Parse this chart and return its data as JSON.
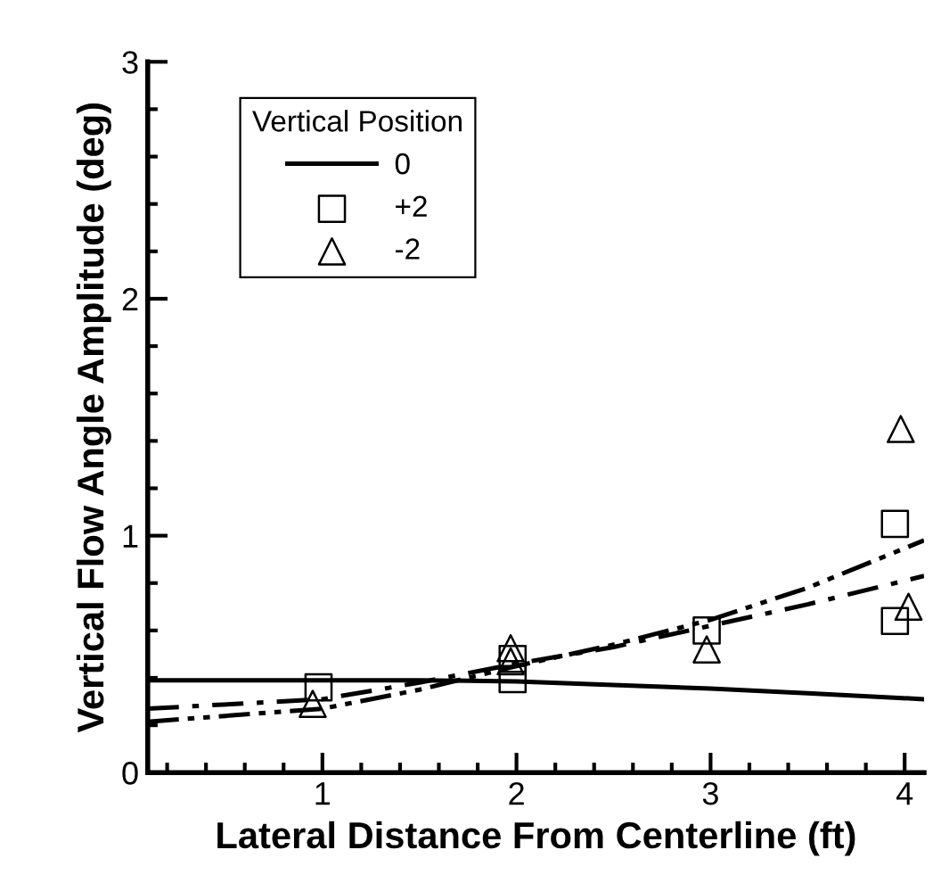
{
  "chart_data": {
    "type": "line",
    "xlabel": "Lateral Distance From Centerline (ft)",
    "ylabel": "Vertical Flow Angle Amplitude (deg)",
    "legend_title": "Vertical Position",
    "legend": "top left",
    "grid": false,
    "xlim": [
      0.1,
      4.1
    ],
    "ylim": [
      0,
      3
    ],
    "xticks": [
      {
        "value": 0.2,
        "label": null
      },
      {
        "value": 0.4,
        "label": null
      },
      {
        "value": 0.6,
        "label": null
      },
      {
        "value": 0.8,
        "label": null
      },
      1,
      {
        "value": 1.2,
        "label": null
      },
      {
        "value": 1.4,
        "label": null
      },
      {
        "value": 1.6,
        "label": null
      },
      {
        "value": 1.8,
        "label": null
      },
      2,
      {
        "value": 2.2,
        "label": null
      },
      {
        "value": 2.4,
        "label": null
      },
      {
        "value": 2.6,
        "label": null
      },
      {
        "value": 2.8,
        "label": null
      },
      3,
      {
        "value": 3.2,
        "label": null
      },
      {
        "value": 3.4,
        "label": null
      },
      {
        "value": 3.6,
        "label": null
      },
      {
        "value": 3.8,
        "label": null
      },
      4
    ],
    "yticks": [
      0,
      {
        "value": 0.2,
        "label": null
      },
      {
        "value": 0.4,
        "label": null
      },
      {
        "value": 0.6,
        "label": null
      },
      {
        "value": 0.8,
        "label": null
      },
      1,
      {
        "value": 1.2,
        "label": null
      },
      {
        "value": 1.4,
        "label": null
      },
      {
        "value": 1.6,
        "label": null
      },
      {
        "value": 1.8,
        "label": null
      },
      2,
      {
        "value": 2.2,
        "label": null
      },
      {
        "value": 2.4,
        "label": null
      },
      {
        "value": 2.6,
        "label": null
      },
      {
        "value": 2.8,
        "label": null
      },
      3
    ],
    "series": [
      {
        "name": "0",
        "color": "#000000",
        "line_style": "solid",
        "x": [
          0.1,
          1,
          1.5,
          2,
          2.5,
          3,
          3.5,
          4.1
        ],
        "values": [
          0.39,
          0.39,
          0.39,
          0.385,
          0.37,
          0.355,
          0.335,
          0.31
        ]
      },
      {
        "color": "#000000",
        "line_style": "dashdot",
        "x": [
          0.1,
          1,
          1.5,
          2,
          2.5,
          3,
          3.5,
          4.1
        ],
        "values": [
          0.27,
          0.31,
          0.38,
          0.46,
          0.53,
          0.62,
          0.71,
          0.83
        ]
      },
      {
        "color": "#000000",
        "line_style": "dashdotdot",
        "x": [
          0.1,
          1,
          1.5,
          2,
          2.5,
          3,
          3.5,
          4.1
        ],
        "values": [
          0.215,
          0.27,
          0.35,
          0.45,
          0.54,
          0.645,
          0.78,
          0.98
        ]
      },
      {
        "name": "+2",
        "type": "scatter",
        "color": "#000000",
        "marker": "square",
        "x": [
          0.98,
          1.98,
          1.98,
          2.98,
          3.95,
          3.95
        ],
        "values": [
          0.36,
          0.395,
          0.48,
          0.6,
          0.64,
          1.05
        ]
      },
      {
        "name": "-2",
        "type": "scatter",
        "color": "#000000",
        "marker": "triangle",
        "x": [
          0.95,
          1.97,
          1.97,
          2.98,
          4.02,
          3.98
        ],
        "values": [
          0.29,
          0.525,
          0.47,
          0.52,
          0.7,
          1.45
        ]
      }
    ]
  }
}
